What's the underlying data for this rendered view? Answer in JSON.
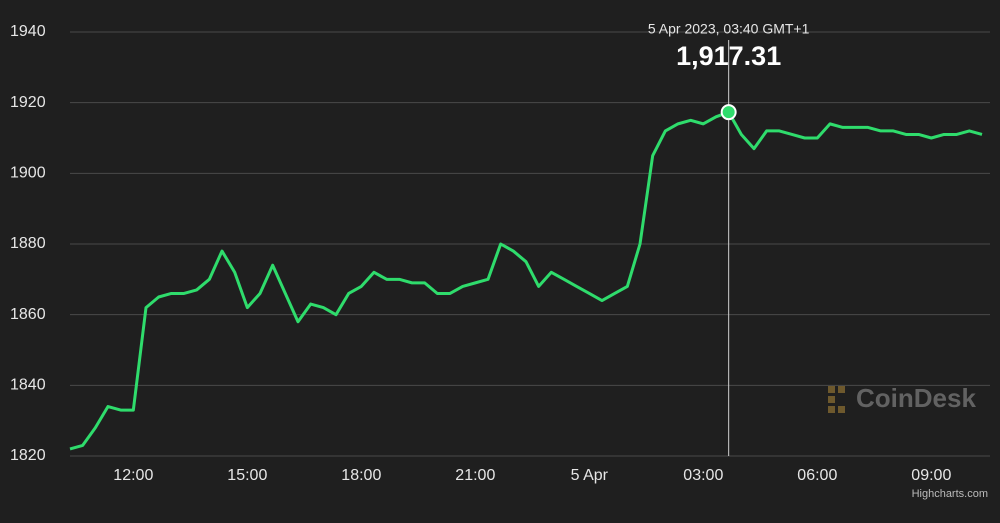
{
  "chart_data": {
    "type": "line",
    "categories": [
      null,
      null,
      null,
      null,
      null,
      "12:00",
      null,
      null,
      null,
      null,
      null,
      null,
      null,
      null,
      "15:00",
      null,
      null,
      null,
      null,
      null,
      null,
      null,
      null,
      "18:00",
      null,
      null,
      null,
      null,
      null,
      null,
      null,
      null,
      "21:00",
      null,
      null,
      null,
      null,
      null,
      null,
      null,
      null,
      "5 Apr",
      null,
      null,
      null,
      null,
      null,
      null,
      null,
      null,
      "03:00",
      null,
      null,
      null,
      null,
      null,
      null,
      null,
      null,
      "06:00",
      null,
      null,
      null,
      null,
      null,
      null,
      null,
      null,
      "09:00",
      null,
      null,
      null,
      null
    ],
    "values": [
      1822,
      1823,
      1828,
      1834,
      1833,
      1833,
      1862,
      1865,
      1866,
      1866,
      1867,
      1870,
      1878,
      1872,
      1862,
      1866,
      1874,
      1866,
      1858,
      1863,
      1862,
      1860,
      1866,
      1868,
      1872,
      1870,
      1870,
      1869,
      1869,
      1866,
      1866,
      1868,
      1869,
      1870,
      1880,
      1878,
      1875,
      1868,
      1872,
      1870,
      1868,
      1866,
      1864,
      1866,
      1868,
      1880,
      1905,
      1912,
      1914,
      1915,
      1914,
      1916,
      1917.31,
      1911,
      1907,
      1912,
      1912,
      1911,
      1910,
      1910,
      1914,
      1913,
      1913,
      1913,
      1912,
      1912,
      1911,
      1911,
      1910,
      1911,
      1911,
      1912,
      1911
    ],
    "color": "#2fdc6c",
    "ylim": [
      1820,
      1940
    ],
    "yticks": [
      1820,
      1840,
      1860,
      1880,
      1900,
      1920,
      1940
    ],
    "grid": true,
    "tooltip": {
      "title": "5 Apr 2023, 03:40 GMT+1",
      "value": 1917.31,
      "label": "1,917.31"
    },
    "watermark": "CoinDesk",
    "credit": "Highcharts.com"
  }
}
